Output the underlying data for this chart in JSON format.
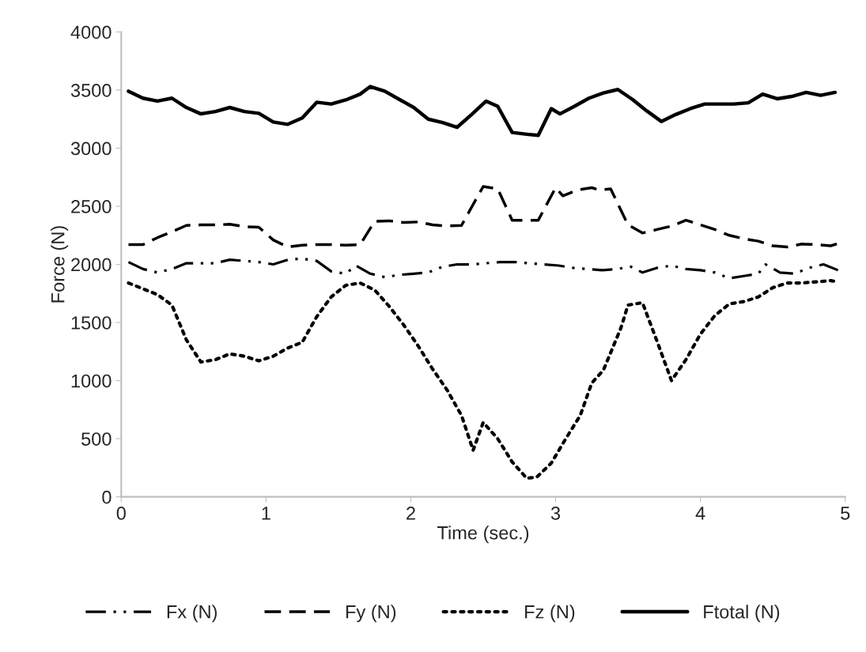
{
  "chart_data": {
    "type": "line",
    "xlabel": "Time (sec.)",
    "ylabel": "Force (N)",
    "xlim": [
      0,
      5
    ],
    "xticks": [
      0,
      1,
      2,
      3,
      4,
      5
    ],
    "ylim": [
      0,
      4000
    ],
    "yticks": [
      0,
      500,
      1000,
      1500,
      2000,
      2500,
      3000,
      3500,
      4000
    ],
    "grid": false,
    "legend": "bottom",
    "marker": "none",
    "series": [
      {
        "name": "Fx (N)",
        "color": "#000000",
        "line_style": "dashdotdot",
        "x": [
          0.05,
          0.15,
          0.25,
          0.35,
          0.45,
          0.55,
          0.65,
          0.75,
          0.85,
          0.95,
          1.05,
          1.15,
          1.25,
          1.35,
          1.45,
          1.55,
          1.62,
          1.72,
          1.82,
          1.92,
          2.02,
          2.12,
          2.22,
          2.32,
          2.42,
          2.52,
          2.62,
          2.72,
          2.82,
          2.92,
          3.02,
          3.12,
          3.22,
          3.32,
          3.42,
          3.52,
          3.6,
          3.7,
          3.8,
          3.9,
          4.0,
          4.1,
          4.2,
          4.3,
          4.4,
          4.45,
          4.55,
          4.65,
          4.75,
          4.85,
          4.95
        ],
        "values": [
          2020,
          1960,
          1930,
          1960,
          2010,
          2010,
          2010,
          2040,
          2030,
          2020,
          2000,
          2040,
          2050,
          2030,
          1940,
          1920,
          1990,
          1920,
          1890,
          1910,
          1920,
          1930,
          1980,
          2000,
          2000,
          2010,
          2020,
          2020,
          2010,
          2000,
          1990,
          1970,
          1960,
          1950,
          1960,
          1980,
          1930,
          1970,
          1990,
          1960,
          1950,
          1930,
          1880,
          1900,
          1920,
          2000,
          1930,
          1920,
          1970,
          2000,
          1950
        ]
      },
      {
        "name": "Fy (N)",
        "color": "#000000",
        "line_style": "dashed",
        "x": [
          0.05,
          0.15,
          0.25,
          0.35,
          0.45,
          0.55,
          0.65,
          0.75,
          0.85,
          0.95,
          1.05,
          1.15,
          1.25,
          1.35,
          1.45,
          1.55,
          1.65,
          1.75,
          1.85,
          1.95,
          2.05,
          2.15,
          2.25,
          2.35,
          2.45,
          2.5,
          2.6,
          2.7,
          2.8,
          2.88,
          3.0,
          3.05,
          3.15,
          3.25,
          3.3,
          3.38,
          3.5,
          3.6,
          3.7,
          3.8,
          3.9,
          4.0,
          4.1,
          4.2,
          4.3,
          4.4,
          4.5,
          4.6,
          4.7,
          4.8,
          4.9,
          4.95
        ],
        "values": [
          2170,
          2170,
          2230,
          2280,
          2335,
          2340,
          2340,
          2345,
          2325,
          2320,
          2210,
          2150,
          2165,
          2170,
          2170,
          2165,
          2170,
          2370,
          2375,
          2360,
          2365,
          2340,
          2330,
          2335,
          2560,
          2670,
          2650,
          2380,
          2380,
          2380,
          2660,
          2590,
          2640,
          2660,
          2640,
          2650,
          2340,
          2270,
          2300,
          2330,
          2380,
          2340,
          2300,
          2250,
          2220,
          2200,
          2160,
          2150,
          2175,
          2170,
          2160,
          2180
        ]
      },
      {
        "name": "Fz (N)",
        "color": "#000000",
        "line_style": "dotted",
        "x": [
          0.05,
          0.15,
          0.25,
          0.35,
          0.45,
          0.55,
          0.65,
          0.75,
          0.85,
          0.95,
          1.05,
          1.15,
          1.25,
          1.35,
          1.45,
          1.55,
          1.65,
          1.75,
          1.85,
          1.95,
          2.05,
          2.15,
          2.25,
          2.35,
          2.43,
          2.5,
          2.6,
          2.7,
          2.8,
          2.87,
          2.97,
          3.07,
          3.17,
          3.25,
          3.33,
          3.45,
          3.5,
          3.6,
          3.7,
          3.8,
          3.9,
          4.0,
          4.1,
          4.2,
          4.3,
          4.4,
          4.5,
          4.6,
          4.7,
          4.8,
          4.9,
          4.95
        ],
        "values": [
          1840,
          1790,
          1740,
          1650,
          1350,
          1160,
          1180,
          1230,
          1210,
          1170,
          1210,
          1280,
          1330,
          1550,
          1720,
          1820,
          1840,
          1780,
          1640,
          1480,
          1300,
          1100,
          920,
          700,
          400,
          640,
          500,
          300,
          160,
          170,
          290,
          500,
          700,
          980,
          1090,
          1450,
          1650,
          1670,
          1340,
          1000,
          1180,
          1400,
          1560,
          1660,
          1680,
          1720,
          1800,
          1840,
          1840,
          1850,
          1860,
          1850
        ]
      },
      {
        "name": "Ftotal (N)",
        "color": "#000000",
        "line_style": "solid",
        "x": [
          0.05,
          0.15,
          0.25,
          0.35,
          0.45,
          0.55,
          0.65,
          0.75,
          0.85,
          0.95,
          1.05,
          1.15,
          1.25,
          1.35,
          1.45,
          1.55,
          1.65,
          1.72,
          1.82,
          1.92,
          2.02,
          2.12,
          2.22,
          2.32,
          2.42,
          2.52,
          2.6,
          2.7,
          2.8,
          2.88,
          2.97,
          3.03,
          3.13,
          3.23,
          3.33,
          3.43,
          3.53,
          3.63,
          3.73,
          3.83,
          3.93,
          4.03,
          4.13,
          4.23,
          4.33,
          4.43,
          4.53,
          4.63,
          4.73,
          4.83,
          4.93
        ],
        "values": [
          3490,
          3430,
          3405,
          3430,
          3350,
          3295,
          3315,
          3350,
          3315,
          3300,
          3225,
          3205,
          3260,
          3395,
          3380,
          3415,
          3465,
          3530,
          3490,
          3420,
          3350,
          3250,
          3220,
          3180,
          3290,
          3405,
          3360,
          3135,
          3120,
          3110,
          3340,
          3295,
          3360,
          3430,
          3475,
          3505,
          3420,
          3320,
          3230,
          3290,
          3340,
          3380,
          3380,
          3380,
          3390,
          3465,
          3425,
          3445,
          3480,
          3455,
          3480
        ]
      }
    ]
  }
}
